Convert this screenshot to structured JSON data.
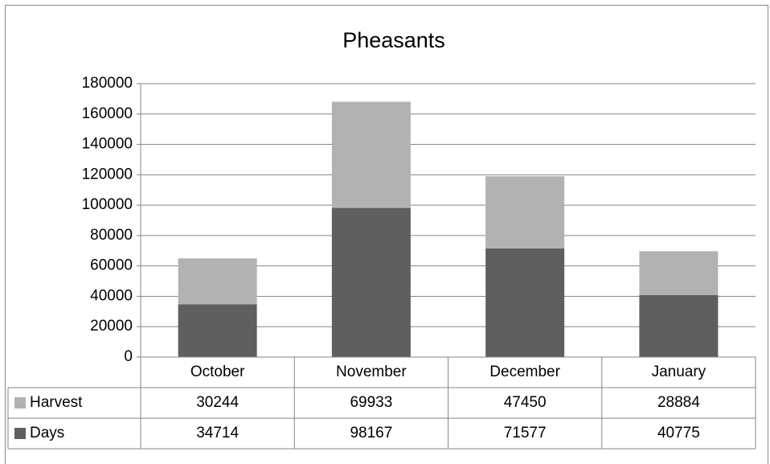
{
  "chart_data": {
    "type": "stacked_bar",
    "title": "Pheasants",
    "categories": [
      "October",
      "November",
      "December",
      "January"
    ],
    "series": [
      {
        "name": "Harvest",
        "color": "#b2b2b2",
        "values": [
          30244,
          69933,
          47450,
          28884
        ]
      },
      {
        "name": "Days",
        "color": "#5f5f5f",
        "values": [
          34714,
          98167,
          71577,
          40775
        ]
      }
    ],
    "ylim": [
      0,
      180000
    ],
    "yticks": [
      0,
      20000,
      40000,
      60000,
      80000,
      100000,
      120000,
      140000,
      160000,
      180000
    ],
    "grid": true,
    "legend": "data-table"
  }
}
